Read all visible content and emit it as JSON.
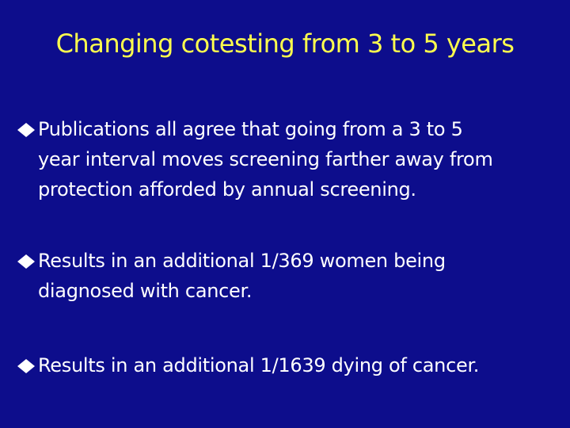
{
  "slide": {
    "title": "Changing cotesting from 3 to 5 years",
    "bullets": [
      {
        "lines": [
          "Publications all agree that going from a 3 to 5",
          "year interval moves screening farther away from",
          "protection afforded by annual screening."
        ]
      },
      {
        "lines": [
          "Results in an additional 1/369 women being",
          "diagnosed with cancer."
        ]
      },
      {
        "lines": [
          "Results in an additional 1/1639 dying of cancer."
        ]
      }
    ]
  }
}
